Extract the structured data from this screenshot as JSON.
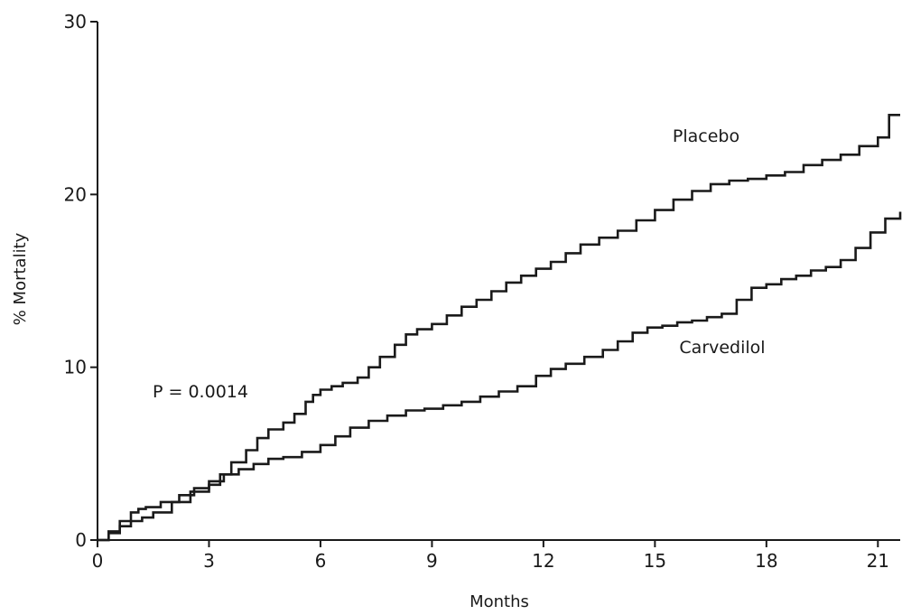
{
  "chart_data": {
    "type": "line",
    "title": "",
    "xlabel": "Months",
    "ylabel": "% Mortality",
    "xlim": [
      0,
      21.6
    ],
    "ylim": [
      0,
      30
    ],
    "xticks": [
      0,
      3,
      6,
      9,
      12,
      15,
      18,
      21
    ],
    "yticks": [
      0,
      10,
      20,
      30
    ],
    "grid": false,
    "annotation": "P = 0.0014",
    "series": [
      {
        "name": "Placebo",
        "step": true,
        "x": [
          0,
          0.3,
          0.6,
          0.9,
          1.2,
          1.5,
          2.0,
          2.5,
          3.0,
          3.3,
          3.6,
          4.0,
          4.3,
          4.6,
          5.0,
          5.3,
          5.6,
          5.8,
          6.0,
          6.3,
          6.6,
          7.0,
          7.3,
          7.6,
          8.0,
          8.3,
          8.6,
          9.0,
          9.4,
          9.8,
          10.2,
          10.6,
          11.0,
          11.4,
          11.8,
          12.2,
          12.6,
          13.0,
          13.5,
          14.0,
          14.5,
          15.0,
          15.5,
          16.0,
          16.5,
          17.0,
          17.5,
          18.0,
          18.5,
          19.0,
          19.5,
          20.0,
          20.5,
          21.0,
          21.3,
          21.6
        ],
        "values": [
          0,
          0.4,
          0.8,
          1.1,
          1.3,
          1.6,
          2.2,
          2.8,
          3.2,
          3.8,
          4.5,
          5.2,
          5.9,
          6.4,
          6.8,
          7.3,
          8.0,
          8.4,
          8.7,
          8.9,
          9.1,
          9.4,
          10.0,
          10.6,
          11.3,
          11.9,
          12.2,
          12.5,
          13.0,
          13.5,
          13.9,
          14.4,
          14.9,
          15.3,
          15.7,
          16.1,
          16.6,
          17.1,
          17.5,
          17.9,
          18.5,
          19.1,
          19.7,
          20.2,
          20.6,
          20.8,
          20.9,
          21.1,
          21.3,
          21.7,
          22.0,
          22.3,
          22.8,
          23.3,
          24.6,
          24.6
        ]
      },
      {
        "name": "Carvedilol",
        "step": true,
        "x": [
          0,
          0.3,
          0.6,
          0.9,
          1.1,
          1.3,
          1.7,
          2.2,
          2.6,
          3.0,
          3.4,
          3.8,
          4.2,
          4.6,
          5.0,
          5.5,
          6.0,
          6.4,
          6.8,
          7.3,
          7.8,
          8.3,
          8.8,
          9.3,
          9.8,
          10.3,
          10.8,
          11.3,
          11.8,
          12.2,
          12.6,
          13.1,
          13.6,
          14.0,
          14.4,
          14.8,
          15.2,
          15.6,
          16.0,
          16.4,
          16.8,
          17.2,
          17.6,
          18.0,
          18.4,
          18.8,
          19.2,
          19.6,
          20.0,
          20.4,
          20.8,
          21.2,
          21.6
        ],
        "values": [
          0,
          0.5,
          1.1,
          1.6,
          1.8,
          1.9,
          2.2,
          2.6,
          3.0,
          3.4,
          3.8,
          4.1,
          4.4,
          4.7,
          4.8,
          5.1,
          5.5,
          6.0,
          6.5,
          6.9,
          7.2,
          7.5,
          7.6,
          7.8,
          8.0,
          8.3,
          8.6,
          8.9,
          9.5,
          9.9,
          10.2,
          10.6,
          11.0,
          11.5,
          12.0,
          12.3,
          12.4,
          12.6,
          12.7,
          12.9,
          13.1,
          13.9,
          14.6,
          14.8,
          15.1,
          15.3,
          15.6,
          15.8,
          16.2,
          16.9,
          17.8,
          18.6,
          19.0
        ]
      }
    ]
  }
}
